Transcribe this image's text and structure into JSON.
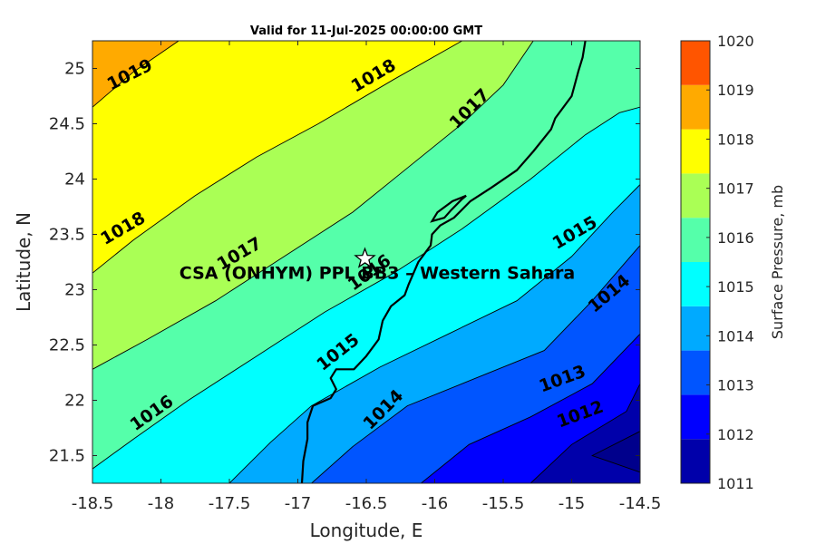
{
  "chart_data": {
    "type": "contour",
    "title": "Valid for 11-Jul-2025 00:00:00 GMT",
    "xlabel": "Longitude, E",
    "ylabel": "Latitude, N",
    "xlim": [
      -18.5,
      -14.5
    ],
    "ylim": [
      21.25,
      25.25
    ],
    "x_ticks": [
      -18.5,
      -18,
      -17.5,
      -17,
      -16.5,
      -16,
      -15.5,
      -15,
      -14.5
    ],
    "y_ticks": [
      21.5,
      22,
      22.5,
      23,
      23.5,
      24,
      24.5,
      25
    ],
    "x_tick_labels": [
      "-18.5",
      "-18",
      "-17.5",
      "-17",
      "-16.5",
      "-16",
      "-15.5",
      "-15",
      "-14.5"
    ],
    "y_tick_labels": [
      "21.5",
      "22",
      "22.5",
      "23",
      "23.5",
      "24",
      "24.5",
      "25"
    ],
    "colorbar": {
      "label": "Surface Pressure, mb",
      "levels": [
        1011,
        1012,
        1013,
        1014,
        1015,
        1016,
        1017,
        1018,
        1019,
        1020
      ],
      "tick_labels": [
        "1011",
        "1012",
        "1013",
        "1014",
        "1015",
        "1016",
        "1017",
        "1018",
        "1019",
        "1020"
      ],
      "colors": [
        "#0000AA",
        "#0000FF",
        "#0055FF",
        "#00AAFF",
        "#00FFFF",
        "#55FFAA",
        "#AAFF55",
        "#FFFF00",
        "#FFAA00",
        "#FF5500"
      ]
    },
    "contours": [
      {
        "level": 1019,
        "points": [
          [
            -18.5,
            24.65
          ],
          [
            -18.2,
            24.97
          ],
          [
            -17.87,
            25.25
          ]
        ]
      },
      {
        "level": 1018,
        "points": [
          [
            -18.5,
            23.15
          ],
          [
            -18.2,
            23.45
          ],
          [
            -17.75,
            23.85
          ],
          [
            -17.3,
            24.2
          ],
          [
            -16.85,
            24.5
          ],
          [
            -16.3,
            24.9
          ],
          [
            -15.8,
            25.25
          ]
        ]
      },
      {
        "level": 1017,
        "points": [
          [
            -18.5,
            22.28
          ],
          [
            -18.1,
            22.55
          ],
          [
            -17.6,
            22.9
          ],
          [
            -17.1,
            23.3
          ],
          [
            -16.6,
            23.7
          ],
          [
            -16.2,
            24.1
          ],
          [
            -15.8,
            24.5
          ],
          [
            -15.5,
            24.85
          ],
          [
            -15.28,
            25.25
          ]
        ]
      },
      {
        "level": 1016,
        "points": [
          [
            -18.5,
            21.38
          ],
          [
            -18.2,
            21.65
          ],
          [
            -17.8,
            22.0
          ],
          [
            -17.3,
            22.4
          ],
          [
            -16.8,
            22.8
          ],
          [
            -16.3,
            23.15
          ],
          [
            -15.8,
            23.55
          ],
          [
            -15.3,
            24.0
          ],
          [
            -14.9,
            24.4
          ],
          [
            -14.65,
            24.6
          ],
          [
            -14.5,
            24.65
          ]
        ]
      },
      {
        "level": 1015,
        "points": [
          [
            -17.5,
            21.25
          ],
          [
            -17.2,
            21.62
          ],
          [
            -16.9,
            21.95
          ],
          [
            -16.4,
            22.3
          ],
          [
            -15.9,
            22.6
          ],
          [
            -15.4,
            22.9
          ],
          [
            -15.0,
            23.3
          ],
          [
            -14.7,
            23.7
          ],
          [
            -14.5,
            23.95
          ]
        ]
      },
      {
        "level": 1014,
        "points": [
          [
            -16.9,
            21.25
          ],
          [
            -16.6,
            21.58
          ],
          [
            -16.2,
            21.95
          ],
          [
            -15.7,
            22.2
          ],
          [
            -15.2,
            22.45
          ],
          [
            -14.85,
            22.9
          ],
          [
            -14.5,
            23.4
          ]
        ]
      },
      {
        "level": 1013,
        "points": [
          [
            -16.1,
            21.25
          ],
          [
            -15.75,
            21.6
          ],
          [
            -15.3,
            21.85
          ],
          [
            -14.85,
            22.15
          ],
          [
            -14.5,
            22.6
          ]
        ]
      },
      {
        "level": 1012,
        "points": [
          [
            -15.3,
            21.25
          ],
          [
            -15.0,
            21.6
          ],
          [
            -14.6,
            21.9
          ],
          [
            -14.5,
            22.15
          ]
        ]
      },
      {
        "level": 1011,
        "points": [
          [
            -14.5,
            21.72
          ],
          [
            -14.85,
            21.5
          ],
          [
            -14.5,
            21.35
          ]
        ]
      }
    ],
    "contour_labels": [
      {
        "text": "1019",
        "x": -18.23,
        "y": 24.95,
        "angle": -27
      },
      {
        "text": "1018",
        "x": -16.45,
        "y": 24.94,
        "angle": -30
      },
      {
        "text": "1018",
        "x": -18.28,
        "y": 23.56,
        "angle": -30
      },
      {
        "text": "1017",
        "x": -15.75,
        "y": 24.64,
        "angle": -45
      },
      {
        "text": "1017",
        "x": -17.43,
        "y": 23.33,
        "angle": -30
      },
      {
        "text": "1016",
        "x": -16.48,
        "y": 23.16,
        "angle": -36
      },
      {
        "text": "1016",
        "x": -18.07,
        "y": 21.89,
        "angle": -35
      },
      {
        "text": "1015",
        "x": -14.98,
        "y": 23.52,
        "angle": -30
      },
      {
        "text": "1015",
        "x": -16.71,
        "y": 22.44,
        "angle": -38
      },
      {
        "text": "1014",
        "x": -14.73,
        "y": 22.97,
        "angle": -40
      },
      {
        "text": "1014",
        "x": -16.38,
        "y": 21.92,
        "angle": -45
      },
      {
        "text": "1013",
        "x": -15.07,
        "y": 22.2,
        "angle": -20
      },
      {
        "text": "1012",
        "x": -14.94,
        "y": 21.88,
        "angle": -20
      }
    ],
    "coastline": [
      [
        -16.97,
        21.25
      ],
      [
        -16.96,
        21.45
      ],
      [
        -16.93,
        21.65
      ],
      [
        -16.93,
        21.8
      ],
      [
        -16.89,
        21.95
      ],
      [
        -16.76,
        22.02
      ],
      [
        -16.72,
        22.1
      ],
      [
        -16.76,
        22.2
      ],
      [
        -16.72,
        22.28
      ],
      [
        -16.59,
        22.28
      ],
      [
        -16.5,
        22.4
      ],
      [
        -16.41,
        22.55
      ],
      [
        -16.38,
        22.72
      ],
      [
        -16.32,
        22.85
      ],
      [
        -16.22,
        22.95
      ],
      [
        -16.19,
        23.05
      ],
      [
        -16.12,
        23.25
      ],
      [
        -16.03,
        23.4
      ],
      [
        -16.02,
        23.5
      ],
      [
        -15.96,
        23.58
      ],
      [
        -15.86,
        23.65
      ],
      [
        -15.74,
        23.8
      ],
      [
        -15.59,
        23.92
      ],
      [
        -15.4,
        24.08
      ],
      [
        -15.28,
        24.25
      ],
      [
        -15.15,
        24.45
      ],
      [
        -15.12,
        24.55
      ],
      [
        -15.0,
        24.75
      ],
      [
        -14.95,
        24.98
      ],
      [
        -14.92,
        25.1
      ],
      [
        -14.9,
        25.25
      ]
    ],
    "peninsula": [
      [
        -15.77,
        23.85
      ],
      [
        -15.87,
        23.8
      ],
      [
        -15.98,
        23.7
      ],
      [
        -16.02,
        23.62
      ],
      [
        -15.93,
        23.65
      ],
      [
        -15.88,
        23.72
      ],
      [
        -15.8,
        23.82
      ],
      [
        -15.77,
        23.85
      ]
    ],
    "site": {
      "label": "CSA (ONHYM) PPL BB3 – Western Sahara",
      "x": -16.51,
      "y": 23.28
    }
  }
}
